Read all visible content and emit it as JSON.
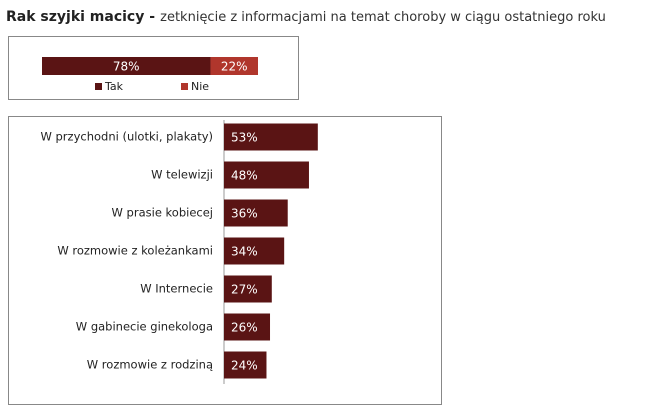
{
  "header": {
    "title_bold": "Rak szyjki macicy -",
    "title_rest": "zetknięcie z informacjami na temat choroby w ciągu ostatniego roku"
  },
  "chart_data": [
    {
      "type": "stacked_bar",
      "xlim": [
        0,
        100
      ],
      "series": [
        {
          "name": "Tak",
          "color": "#5a1414",
          "values": [
            78
          ],
          "value_labels": [
            "78%"
          ]
        },
        {
          "name": "Nie",
          "color": "#b0362c",
          "values": [
            22
          ],
          "value_labels": [
            "22%"
          ]
        }
      ]
    },
    {
      "type": "hbar",
      "xlim": [
        0,
        100
      ],
      "color": "#5a1414",
      "categories": [
        "W przychodni (ulotki, plakaty)",
        "W telewizji",
        "W prasie kobiecej",
        "W rozmowie z koleżankami",
        "W Internecie",
        "W gabinecie ginekologa",
        "W rozmowie z rodziną"
      ],
      "values": [
        53,
        48,
        36,
        34,
        27,
        26,
        24
      ],
      "value_labels": [
        "53%",
        "48%",
        "36%",
        "34%",
        "27%",
        "26%",
        "24%"
      ]
    }
  ]
}
